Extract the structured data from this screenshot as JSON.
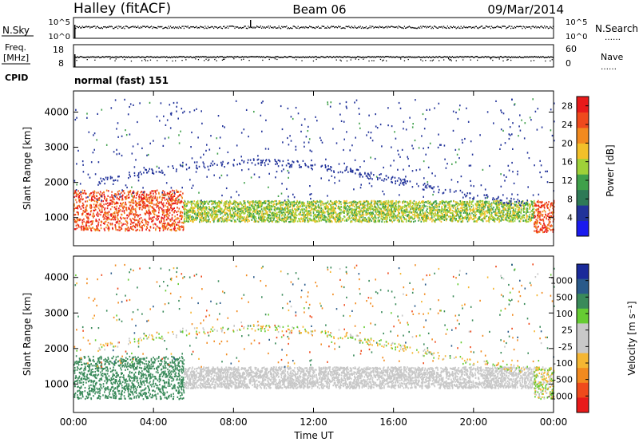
{
  "header": {
    "station": "Halley (fitACF)",
    "beam": "Beam 06",
    "date": "09/Mar/2014"
  },
  "strip_labels": {
    "nsky": "N.Sky",
    "nsearch": "N.Search",
    "freq_line1": "Freq.",
    "freq_line2": "[MHz]",
    "nave": "Nave",
    "cpid": "CPID",
    "cpid_value": "normal (fast) 151",
    "noise_ticks_left": [
      "10^5",
      "10^0"
    ],
    "noise_ticks_right": [
      "10^5",
      "10^0"
    ],
    "freq_ticks_left": [
      "18",
      "8"
    ],
    "freq_ticks_right": [
      "60",
      "0"
    ]
  },
  "colors": {
    "power_scale": [
      "#1a1aee",
      "#22339a",
      "#2e7a56",
      "#3fa04a",
      "#9fd138",
      "#f2c02a",
      "#f28a1f",
      "#ef4a1c",
      "#e81a1a"
    ],
    "velocity_scale": [
      "#e81a1a",
      "#ef4a1c",
      "#f28a1f",
      "#f5b632",
      "#c8c8c8",
      "#c8c8c8",
      "#66cc33",
      "#3a8a5a",
      "#2a5a8a",
      "#1a2a9a"
    ]
  },
  "chart_data": [
    {
      "type": "heatmap",
      "title": "Power",
      "ylabel": "Slant Range [km]",
      "ylim": [
        200,
        4600
      ],
      "yticks": [
        "1000",
        "2000",
        "3000",
        "4000"
      ],
      "xlim": [
        "00:00",
        "24:00"
      ],
      "colorbar": {
        "label": "Power [dB]",
        "ticks": [
          "4",
          "8",
          "12",
          "16",
          "20",
          "24",
          "28"
        ],
        "range": [
          0,
          30
        ]
      },
      "features": [
        {
          "time": "00:00-05:30",
          "range_km": [
            650,
            1800
          ],
          "power_db": [
            20,
            30
          ]
        },
        {
          "time": "05:30-23:00",
          "range_km": [
            900,
            1500
          ],
          "power_db": [
            10,
            20
          ]
        },
        {
          "time": "23:00-24:00",
          "range_km": [
            600,
            1500
          ],
          "power_db": [
            20,
            30
          ]
        }
      ]
    },
    {
      "type": "heatmap",
      "title": "Velocity",
      "ylabel": "Slant Range [km]",
      "ylim": [
        200,
        4600
      ],
      "yticks": [
        "1000",
        "2000",
        "3000",
        "4000"
      ],
      "xlabel": "Time UT",
      "xticks": [
        "00:00",
        "04:00",
        "08:00",
        "12:00",
        "16:00",
        "20:00",
        "00:00"
      ],
      "colorbar": {
        "label": "Velocity [m s⁻¹]",
        "ticks": [
          "1000",
          "500",
          "100",
          "25",
          "-25",
          "-100",
          "-500",
          "-1000"
        ]
      },
      "features": [
        {
          "time": "00:00-05:30",
          "range_km": [
            600,
            1800
          ],
          "velocity_ms": [
            100,
            500
          ]
        },
        {
          "time": "05:30-23:00",
          "range_km": [
            900,
            1500
          ],
          "velocity_ms": [
            -25,
            25
          ]
        },
        {
          "time": "23:00-24:00",
          "range_km": [
            600,
            1500
          ],
          "velocity_ms": [
            -100,
            100
          ]
        }
      ]
    }
  ]
}
